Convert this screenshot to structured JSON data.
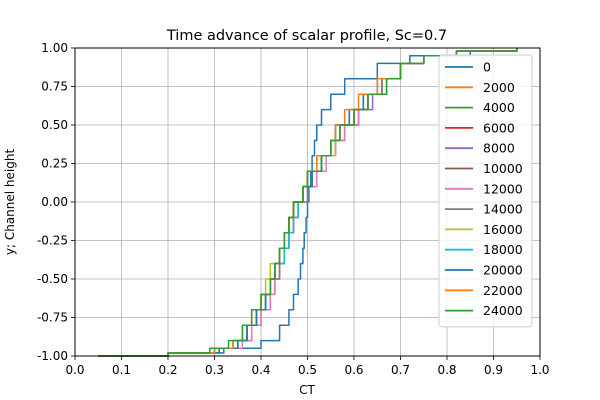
{
  "chart_data": {
    "type": "line",
    "title": "Time advance of scalar profile, Sc=0.7",
    "xlabel": "CT",
    "ylabel": "y; Channel height",
    "xlim": [
      0.0,
      1.0
    ],
    "ylim": [
      -1.0,
      1.0
    ],
    "xticks": [
      "0.0",
      "0.1",
      "0.2",
      "0.3",
      "0.4",
      "0.5",
      "0.6",
      "0.7",
      "0.8",
      "0.9",
      "1.0"
    ],
    "yticks": [
      "-1.00",
      "-0.75",
      "-0.50",
      "-0.25",
      "0.00",
      "0.25",
      "0.50",
      "0.75",
      "1.00"
    ],
    "grid": true,
    "legend_position": "right-inside",
    "y": [
      -1.0,
      -0.98,
      -0.95,
      -0.9,
      -0.8,
      -0.7,
      -0.6,
      -0.5,
      -0.4,
      -0.3,
      -0.2,
      -0.1,
      0.0,
      0.1,
      0.2,
      0.3,
      0.4,
      0.5,
      0.6,
      0.7,
      0.8,
      0.9,
      0.95,
      0.98,
      1.0
    ],
    "series": [
      {
        "name": "0",
        "color": "#1f77b4",
        "x": [
          0.05,
          0.2,
          0.32,
          0.4,
          0.44,
          0.46,
          0.47,
          0.48,
          0.485,
          0.49,
          0.493,
          0.497,
          0.5,
          0.503,
          0.507,
          0.51,
          0.515,
          0.52,
          0.53,
          0.55,
          0.58,
          0.65,
          0.72,
          0.85,
          0.95
        ]
      },
      {
        "name": "2000",
        "color": "#ff7f0e",
        "x": [
          0.05,
          0.2,
          0.3,
          0.35,
          0.38,
          0.4,
          0.42,
          0.43,
          0.44,
          0.45,
          0.46,
          0.47,
          0.48,
          0.49,
          0.5,
          0.52,
          0.55,
          0.56,
          0.59,
          0.62,
          0.65,
          0.7,
          0.75,
          0.82,
          0.95
        ]
      },
      {
        "name": "4000",
        "color": "#2ca02c",
        "x": [
          0.05,
          0.2,
          0.3,
          0.35,
          0.37,
          0.39,
          0.41,
          0.42,
          0.43,
          0.44,
          0.45,
          0.46,
          0.47,
          0.49,
          0.5,
          0.52,
          0.55,
          0.56,
          0.6,
          0.63,
          0.66,
          0.7,
          0.75,
          0.82,
          0.95
        ]
      },
      {
        "name": "6000",
        "color": "#d62728",
        "x": [
          0.05,
          0.2,
          0.3,
          0.35,
          0.37,
          0.38,
          0.4,
          0.42,
          0.43,
          0.44,
          0.45,
          0.46,
          0.47,
          0.49,
          0.5,
          0.53,
          0.56,
          0.57,
          0.6,
          0.63,
          0.66,
          0.7,
          0.75,
          0.82,
          0.95
        ]
      },
      {
        "name": "8000",
        "color": "#9467bd",
        "x": [
          0.05,
          0.2,
          0.3,
          0.34,
          0.37,
          0.39,
          0.41,
          0.42,
          0.43,
          0.44,
          0.45,
          0.46,
          0.48,
          0.49,
          0.51,
          0.53,
          0.56,
          0.58,
          0.61,
          0.64,
          0.67,
          0.7,
          0.75,
          0.82,
          0.95
        ]
      },
      {
        "name": "10000",
        "color": "#8c564b",
        "x": [
          0.05,
          0.2,
          0.3,
          0.35,
          0.37,
          0.39,
          0.4,
          0.42,
          0.43,
          0.44,
          0.45,
          0.46,
          0.48,
          0.49,
          0.51,
          0.53,
          0.55,
          0.58,
          0.61,
          0.63,
          0.66,
          0.7,
          0.75,
          0.82,
          0.95
        ]
      },
      {
        "name": "12000",
        "color": "#e377c2",
        "x": [
          0.05,
          0.2,
          0.31,
          0.36,
          0.38,
          0.4,
          0.42,
          0.43,
          0.44,
          0.45,
          0.46,
          0.47,
          0.48,
          0.5,
          0.52,
          0.54,
          0.56,
          0.58,
          0.61,
          0.63,
          0.66,
          0.7,
          0.75,
          0.82,
          0.95
        ]
      },
      {
        "name": "14000",
        "color": "#7f7f7f",
        "x": [
          0.05,
          0.2,
          0.3,
          0.34,
          0.37,
          0.39,
          0.4,
          0.42,
          0.44,
          0.45,
          0.46,
          0.47,
          0.48,
          0.5,
          0.51,
          0.53,
          0.55,
          0.57,
          0.6,
          0.62,
          0.66,
          0.7,
          0.75,
          0.82,
          0.95
        ]
      },
      {
        "name": "16000",
        "color": "#bcbd22",
        "x": [
          0.05,
          0.2,
          0.3,
          0.34,
          0.36,
          0.38,
          0.4,
          0.41,
          0.42,
          0.44,
          0.45,
          0.46,
          0.48,
          0.49,
          0.51,
          0.53,
          0.56,
          0.57,
          0.6,
          0.62,
          0.65,
          0.7,
          0.75,
          0.82,
          0.95
        ]
      },
      {
        "name": "18000",
        "color": "#17becf",
        "x": [
          0.05,
          0.2,
          0.31,
          0.35,
          0.37,
          0.39,
          0.41,
          0.42,
          0.43,
          0.45,
          0.46,
          0.47,
          0.48,
          0.49,
          0.5,
          0.53,
          0.55,
          0.56,
          0.59,
          0.62,
          0.65,
          0.7,
          0.75,
          0.82,
          0.95
        ]
      },
      {
        "name": "20000",
        "color": "#1f77b4",
        "x": [
          0.05,
          0.2,
          0.31,
          0.35,
          0.37,
          0.39,
          0.41,
          0.42,
          0.43,
          0.44,
          0.45,
          0.46,
          0.47,
          0.49,
          0.51,
          0.53,
          0.55,
          0.56,
          0.59,
          0.62,
          0.65,
          0.7,
          0.75,
          0.82,
          0.95
        ]
      },
      {
        "name": "22000",
        "color": "#ff7f0e",
        "x": [
          0.05,
          0.2,
          0.3,
          0.34,
          0.36,
          0.38,
          0.4,
          0.42,
          0.43,
          0.44,
          0.45,
          0.46,
          0.47,
          0.49,
          0.5,
          0.52,
          0.55,
          0.56,
          0.58,
          0.61,
          0.65,
          0.7,
          0.75,
          0.82,
          0.95
        ]
      },
      {
        "name": "24000",
        "color": "#2ca02c",
        "x": [
          0.05,
          0.2,
          0.29,
          0.33,
          0.36,
          0.38,
          0.4,
          0.42,
          0.43,
          0.44,
          0.45,
          0.46,
          0.47,
          0.49,
          0.5,
          0.53,
          0.55,
          0.57,
          0.6,
          0.63,
          0.67,
          0.7,
          0.75,
          0.82,
          0.95
        ]
      }
    ]
  }
}
